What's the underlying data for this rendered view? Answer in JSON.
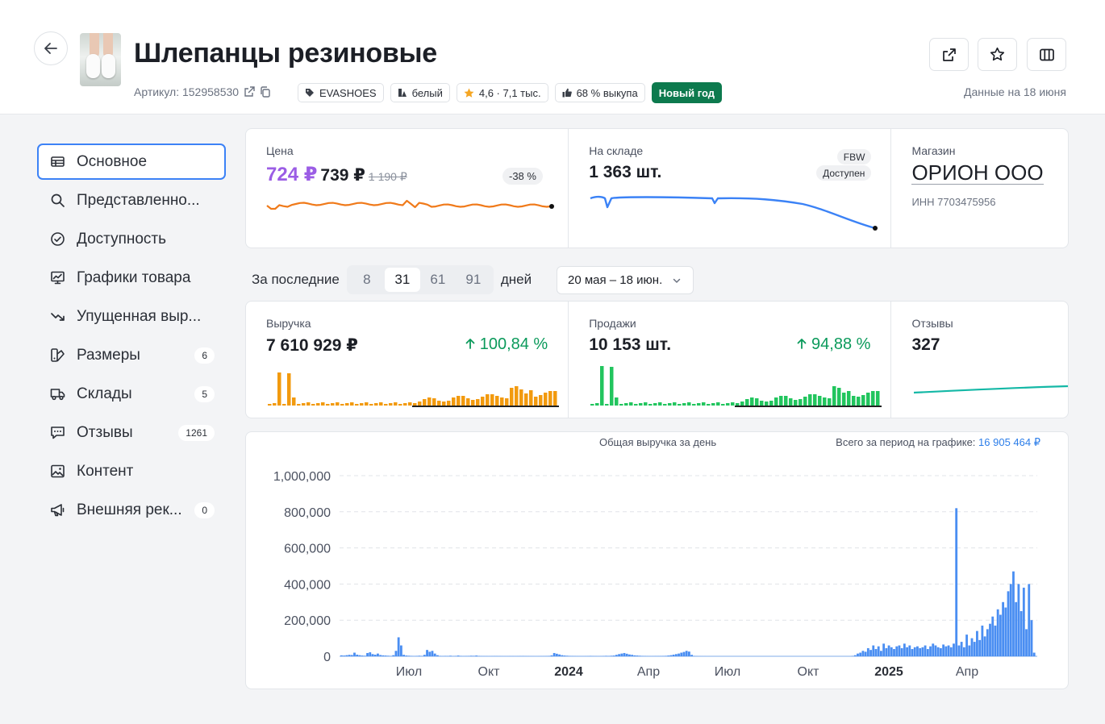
{
  "header": {
    "title": "Шлепанцы резиновые",
    "sku_label": "Артикул: 152958530",
    "tags": [
      {
        "icon": "tag-icon",
        "label": "EVASHOES"
      },
      {
        "icon": "color-icon",
        "label": "белый"
      },
      {
        "icon": "star-icon",
        "label": "4,6 · 7,1 тыс."
      },
      {
        "icon": "thumbs-up-icon",
        "label": "68 % выкупа"
      }
    ],
    "promo_badge": "Новый год",
    "data_date": "Данные на 18 июня",
    "actions": [
      "external-link-icon",
      "star-icon",
      "columns-icon"
    ]
  },
  "nav": {
    "items": [
      {
        "icon": "table-icon",
        "label": "Основное",
        "active": true
      },
      {
        "icon": "search-icon",
        "label": "Представленно..."
      },
      {
        "icon": "check-circle-icon",
        "label": "Доступность"
      },
      {
        "icon": "chart-icon",
        "label": "Графики товара"
      },
      {
        "icon": "trend-down-icon",
        "label": "Упущенная выр..."
      },
      {
        "icon": "sizes-icon",
        "label": "Размеры",
        "badge": "6"
      },
      {
        "icon": "truck-icon",
        "label": "Склады",
        "badge": "5"
      },
      {
        "icon": "comment-icon",
        "label": "Отзывы",
        "badge": "1261"
      },
      {
        "icon": "image-icon",
        "label": "Контент"
      },
      {
        "icon": "megaphone-icon",
        "label": "Внешняя рек...",
        "badge": "0"
      }
    ]
  },
  "top_cards": {
    "price": {
      "label": "Цена",
      "current": "724 ₽",
      "base": "739 ₽",
      "old": "1 190 ₽",
      "discount": "-38 %",
      "line_color": "#f07a1a"
    },
    "stock": {
      "label": "На складе",
      "value": "1 363 шт.",
      "badge1": "FBW",
      "badge2": "Доступен",
      "line_color": "#3b82f6"
    },
    "shop": {
      "label": "Магазин",
      "name": "ОРИОН ООО",
      "inn": "ИНН 7703475956"
    }
  },
  "filter": {
    "label": "За последние",
    "options": [
      "8",
      "31",
      "61",
      "91"
    ],
    "active": "31",
    "suffix": "дней",
    "date_range": "20 мая – 18 июн."
  },
  "metric_cards": {
    "revenue": {
      "label": "Выручка",
      "value": "7 610 929 ₽",
      "growth": "100,84 %",
      "color": "#f29a0e"
    },
    "sales": {
      "label": "Продажи",
      "value": "10 153 шт.",
      "growth": "94,88 %",
      "color": "#22c55e"
    },
    "reviews": {
      "label": "Отзывы",
      "value": "327",
      "color": "#14b8a6"
    }
  },
  "big_chart": {
    "title": "Общая выручка за день",
    "total_label": "Всего за период на графике:",
    "total_value": "16 905 464 ₽"
  },
  "chart_data": {
    "type": "bar",
    "title": "Общая выручка за день",
    "yticks": [
      "1,000,000",
      "800,000",
      "600,000",
      "400,000",
      "200,000",
      "0"
    ],
    "ylim": [
      0,
      1000000
    ],
    "xticks": [
      {
        "label": "Июл",
        "bold": false
      },
      {
        "label": "Окт",
        "bold": false
      },
      {
        "label": "2024",
        "bold": true
      },
      {
        "label": "Апр",
        "bold": false
      },
      {
        "label": "Июл",
        "bold": false
      },
      {
        "label": "Окт",
        "bold": false
      },
      {
        "label": "2025",
        "bold": true
      },
      {
        "label": "Апр",
        "bold": false
      }
    ],
    "series": [
      {
        "values": [
          5000,
          4000,
          6000,
          8000,
          7000,
          20000,
          9000,
          6000,
          4000,
          3000,
          18000,
          22000,
          12000,
          9000,
          15000,
          7000,
          5000,
          4000,
          3000,
          2000,
          6000,
          30000,
          105000,
          60000,
          8000,
          4000,
          3000,
          2000,
          1000,
          2000,
          3000,
          2000,
          8000,
          35000,
          25000,
          30000,
          15000,
          6000,
          2000,
          1000,
          2000,
          1500,
          3000,
          1000,
          2000,
          4000,
          2000,
          1000,
          1500,
          2000,
          3000,
          2500,
          4000,
          2000,
          1000,
          800,
          700,
          600,
          900,
          1200,
          1000,
          800,
          600,
          400,
          500,
          700,
          800,
          600,
          900,
          1100,
          1300,
          900,
          700,
          500,
          400,
          300,
          500,
          700,
          900,
          1100,
          2000,
          5000,
          18000,
          14000,
          10000,
          6000,
          4000,
          3000,
          2000,
          1500,
          1000,
          800,
          600,
          500,
          700,
          1000,
          2000,
          1000,
          800,
          600,
          900,
          1500,
          2500,
          2000,
          3000,
          4000,
          8000,
          12000,
          15000,
          18000,
          14000,
          10000,
          8000,
          5000,
          4000,
          3000,
          2000,
          1500,
          1000,
          800,
          900,
          1100,
          1300,
          1500,
          2000,
          2500,
          4000,
          6000,
          9000,
          12000,
          15000,
          20000,
          24000,
          30000,
          26000,
          8000,
          2000,
          1000,
          500,
          300,
          200,
          100,
          0,
          0,
          0,
          0,
          0,
          0,
          0,
          0,
          0,
          0,
          0,
          0,
          0,
          0,
          0,
          0,
          0,
          0,
          0,
          0,
          0,
          0,
          0,
          0,
          0,
          0,
          0,
          0,
          0,
          0,
          0,
          0,
          0,
          0,
          0,
          0,
          0,
          0,
          0,
          0,
          0,
          0,
          0,
          0,
          0,
          0,
          0,
          0,
          0,
          0,
          0,
          0,
          0,
          0,
          0,
          2000,
          6000,
          15000,
          20000,
          30000,
          25000,
          45000,
          35000,
          60000,
          40000,
          55000,
          30000,
          70000,
          45000,
          60000,
          50000,
          40000,
          55000,
          60000,
          45000,
          70000,
          50000,
          60000,
          40000,
          50000,
          55000,
          45000,
          50000,
          60000,
          40000,
          55000,
          70000,
          60000,
          50000,
          45000,
          65000,
          55000,
          60000,
          50000,
          70000,
          820000,
          60000,
          80000,
          50000,
          120000,
          60000,
          100000,
          80000,
          140000,
          90000,
          170000,
          110000,
          150000,
          180000,
          220000,
          170000,
          260000,
          230000,
          300000,
          270000,
          360000,
          400000,
          470000,
          300000,
          400000,
          250000,
          380000,
          150000,
          400000,
          200000,
          20000
        ],
        "color": "#4a8ef2"
      }
    ]
  }
}
